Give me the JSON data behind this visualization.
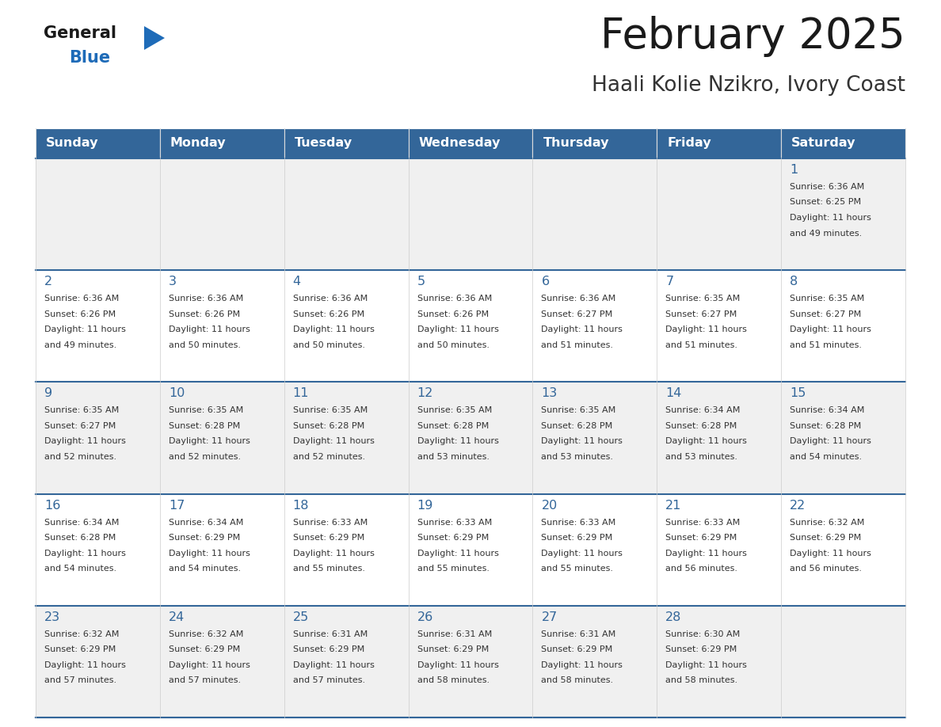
{
  "title": "February 2025",
  "subtitle": "Haali Kolie Nzikro, Ivory Coast",
  "header_bg": "#336699",
  "header_text_color": "#FFFFFF",
  "cell_bg_white": "#FFFFFF",
  "cell_bg_light": "#F0F0F0",
  "day_headers": [
    "Sunday",
    "Monday",
    "Tuesday",
    "Wednesday",
    "Thursday",
    "Friday",
    "Saturday"
  ],
  "title_color": "#1a1a1a",
  "subtitle_color": "#333333",
  "day_num_color": "#336699",
  "cell_text_color": "#333333",
  "grid_color": "#336699",
  "grid_light": "#CCCCCC",
  "logo_general_color": "#1a1a1a",
  "logo_blue_color": "#1E6BB8",
  "logo_triangle_color": "#1E6BB8",
  "calendar_data": [
    [
      null,
      null,
      null,
      null,
      null,
      null,
      {
        "day": 1,
        "sunrise": "6:36 AM",
        "sunset": "6:25 PM",
        "daylight_l1": "Daylight: 11 hours",
        "daylight_l2": "and 49 minutes."
      }
    ],
    [
      {
        "day": 2,
        "sunrise": "6:36 AM",
        "sunset": "6:26 PM",
        "daylight_l1": "Daylight: 11 hours",
        "daylight_l2": "and 49 minutes."
      },
      {
        "day": 3,
        "sunrise": "6:36 AM",
        "sunset": "6:26 PM",
        "daylight_l1": "Daylight: 11 hours",
        "daylight_l2": "and 50 minutes."
      },
      {
        "day": 4,
        "sunrise": "6:36 AM",
        "sunset": "6:26 PM",
        "daylight_l1": "Daylight: 11 hours",
        "daylight_l2": "and 50 minutes."
      },
      {
        "day": 5,
        "sunrise": "6:36 AM",
        "sunset": "6:26 PM",
        "daylight_l1": "Daylight: 11 hours",
        "daylight_l2": "and 50 minutes."
      },
      {
        "day": 6,
        "sunrise": "6:36 AM",
        "sunset": "6:27 PM",
        "daylight_l1": "Daylight: 11 hours",
        "daylight_l2": "and 51 minutes."
      },
      {
        "day": 7,
        "sunrise": "6:35 AM",
        "sunset": "6:27 PM",
        "daylight_l1": "Daylight: 11 hours",
        "daylight_l2": "and 51 minutes."
      },
      {
        "day": 8,
        "sunrise": "6:35 AM",
        "sunset": "6:27 PM",
        "daylight_l1": "Daylight: 11 hours",
        "daylight_l2": "and 51 minutes."
      }
    ],
    [
      {
        "day": 9,
        "sunrise": "6:35 AM",
        "sunset": "6:27 PM",
        "daylight_l1": "Daylight: 11 hours",
        "daylight_l2": "and 52 minutes."
      },
      {
        "day": 10,
        "sunrise": "6:35 AM",
        "sunset": "6:28 PM",
        "daylight_l1": "Daylight: 11 hours",
        "daylight_l2": "and 52 minutes."
      },
      {
        "day": 11,
        "sunrise": "6:35 AM",
        "sunset": "6:28 PM",
        "daylight_l1": "Daylight: 11 hours",
        "daylight_l2": "and 52 minutes."
      },
      {
        "day": 12,
        "sunrise": "6:35 AM",
        "sunset": "6:28 PM",
        "daylight_l1": "Daylight: 11 hours",
        "daylight_l2": "and 53 minutes."
      },
      {
        "day": 13,
        "sunrise": "6:35 AM",
        "sunset": "6:28 PM",
        "daylight_l1": "Daylight: 11 hours",
        "daylight_l2": "and 53 minutes."
      },
      {
        "day": 14,
        "sunrise": "6:34 AM",
        "sunset": "6:28 PM",
        "daylight_l1": "Daylight: 11 hours",
        "daylight_l2": "and 53 minutes."
      },
      {
        "day": 15,
        "sunrise": "6:34 AM",
        "sunset": "6:28 PM",
        "daylight_l1": "Daylight: 11 hours",
        "daylight_l2": "and 54 minutes."
      }
    ],
    [
      {
        "day": 16,
        "sunrise": "6:34 AM",
        "sunset": "6:28 PM",
        "daylight_l1": "Daylight: 11 hours",
        "daylight_l2": "and 54 minutes."
      },
      {
        "day": 17,
        "sunrise": "6:34 AM",
        "sunset": "6:29 PM",
        "daylight_l1": "Daylight: 11 hours",
        "daylight_l2": "and 54 minutes."
      },
      {
        "day": 18,
        "sunrise": "6:33 AM",
        "sunset": "6:29 PM",
        "daylight_l1": "Daylight: 11 hours",
        "daylight_l2": "and 55 minutes."
      },
      {
        "day": 19,
        "sunrise": "6:33 AM",
        "sunset": "6:29 PM",
        "daylight_l1": "Daylight: 11 hours",
        "daylight_l2": "and 55 minutes."
      },
      {
        "day": 20,
        "sunrise": "6:33 AM",
        "sunset": "6:29 PM",
        "daylight_l1": "Daylight: 11 hours",
        "daylight_l2": "and 55 minutes."
      },
      {
        "day": 21,
        "sunrise": "6:33 AM",
        "sunset": "6:29 PM",
        "daylight_l1": "Daylight: 11 hours",
        "daylight_l2": "and 56 minutes."
      },
      {
        "day": 22,
        "sunrise": "6:32 AM",
        "sunset": "6:29 PM",
        "daylight_l1": "Daylight: 11 hours",
        "daylight_l2": "and 56 minutes."
      }
    ],
    [
      {
        "day": 23,
        "sunrise": "6:32 AM",
        "sunset": "6:29 PM",
        "daylight_l1": "Daylight: 11 hours",
        "daylight_l2": "and 57 minutes."
      },
      {
        "day": 24,
        "sunrise": "6:32 AM",
        "sunset": "6:29 PM",
        "daylight_l1": "Daylight: 11 hours",
        "daylight_l2": "and 57 minutes."
      },
      {
        "day": 25,
        "sunrise": "6:31 AM",
        "sunset": "6:29 PM",
        "daylight_l1": "Daylight: 11 hours",
        "daylight_l2": "and 57 minutes."
      },
      {
        "day": 26,
        "sunrise": "6:31 AM",
        "sunset": "6:29 PM",
        "daylight_l1": "Daylight: 11 hours",
        "daylight_l2": "and 58 minutes."
      },
      {
        "day": 27,
        "sunrise": "6:31 AM",
        "sunset": "6:29 PM",
        "daylight_l1": "Daylight: 11 hours",
        "daylight_l2": "and 58 minutes."
      },
      {
        "day": 28,
        "sunrise": "6:30 AM",
        "sunset": "6:29 PM",
        "daylight_l1": "Daylight: 11 hours",
        "daylight_l2": "and 58 minutes."
      },
      null
    ]
  ]
}
